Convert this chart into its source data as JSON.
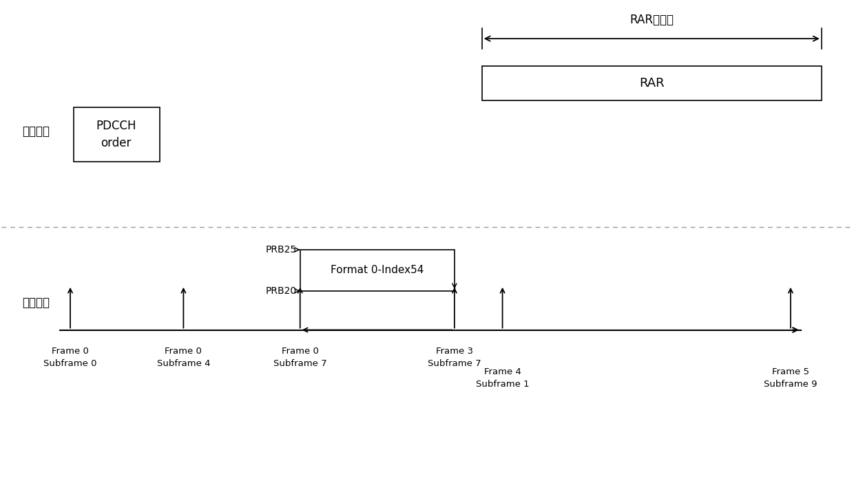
{
  "bg_color": "#ffffff",
  "fig_width": 12.4,
  "fig_height": 7.18,
  "dpi": 100,
  "downlink_label": "下行链路",
  "uplink_label": "上行链路",
  "rar_window_label": "RAR时间窗",
  "rar_label": "RAR",
  "pdcch_label": "PDCCH\norder",
  "prb25_label": "PRB25",
  "prb20_label": "PRB20",
  "format_label": "Format 0-Index54",
  "timeline_labels": [
    [
      "Frame 0",
      "Subframe 0"
    ],
    [
      "Frame 0",
      "Subframe 4"
    ],
    [
      "Frame 0",
      "Subframe 7"
    ],
    [
      "Frame 3",
      "Subframe 7"
    ],
    [
      "Frame 4",
      "Subframe 1"
    ],
    [
      "Frame 5",
      "Subframe 9"
    ]
  ],
  "font_color": "#000000",
  "line_color": "#000000",
  "dashed_color": "#999999"
}
